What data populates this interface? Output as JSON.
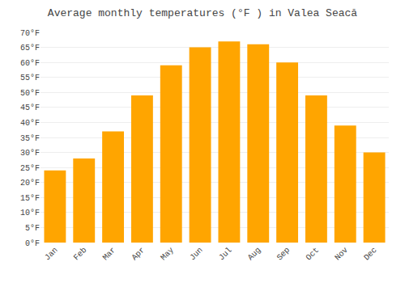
{
  "chart_data": {
    "type": "bar",
    "title": "Average monthly temperatures (°F ) in Valea Seacă",
    "categories": [
      "Jan",
      "Feb",
      "Mar",
      "Apr",
      "May",
      "Jun",
      "Jul",
      "Aug",
      "Sep",
      "Oct",
      "Nov",
      "Dec"
    ],
    "values": [
      24,
      28,
      37,
      49,
      59,
      65,
      67,
      66,
      60,
      49,
      39,
      30
    ],
    "color": "#FFA500",
    "ylim": [
      0,
      70
    ],
    "yticks": [
      {
        "value": 0,
        "label": "0°F"
      },
      {
        "value": 5,
        "label": "5°F"
      },
      {
        "value": 10,
        "label": "10°F"
      },
      {
        "value": 15,
        "label": "15°F"
      },
      {
        "value": 20,
        "label": "20°F"
      },
      {
        "value": 25,
        "label": "25°F"
      },
      {
        "value": 30,
        "label": "30°F"
      },
      {
        "value": 35,
        "label": "35°F"
      },
      {
        "value": 40,
        "label": "40°F"
      },
      {
        "value": 45,
        "label": "45°F"
      },
      {
        "value": 50,
        "label": "50°F"
      },
      {
        "value": 55,
        "label": "55°F"
      },
      {
        "value": 60,
        "label": "60°F"
      },
      {
        "value": 65,
        "label": "65°F"
      },
      {
        "value": 70,
        "label": "70°F"
      }
    ],
    "grid": true
  }
}
